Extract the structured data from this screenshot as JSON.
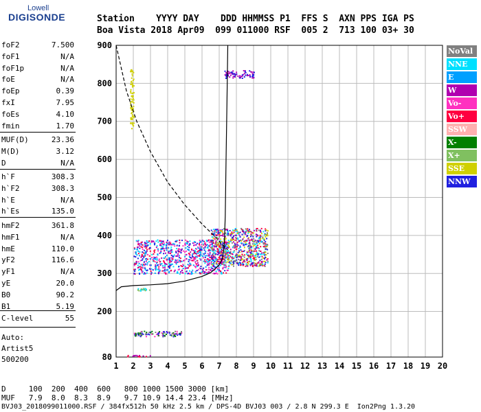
{
  "logo": {
    "line1": "Lowell",
    "line2": "DIGISONDE"
  },
  "header": {
    "line1": "Station    YYYY DAY    DDD HHMMSS P1  FFS S  AXN PPS IGA PS",
    "line2": "Boa Vista 2018 Apr09  099 011000 RSF  005 2  713 100 03+ 30"
  },
  "params_group1": [
    {
      "name": "foF2",
      "value": "7.500"
    },
    {
      "name": "foF1",
      "value": "N/A"
    },
    {
      "name": "foF1p",
      "value": "N/A"
    },
    {
      "name": "foE",
      "value": "N/A"
    },
    {
      "name": "foEp",
      "value": "0.39"
    },
    {
      "name": "fxI",
      "value": "7.95"
    },
    {
      "name": "foEs",
      "value": "4.10"
    },
    {
      "name": "fmin",
      "value": "1.70"
    }
  ],
  "params_group2": [
    {
      "name": "MUF(D)",
      "value": "23.36"
    },
    {
      "name": "M(D)",
      "value": "3.12"
    },
    {
      "name": "D",
      "value": "N/A"
    }
  ],
  "params_group3": [
    {
      "name": "h`F",
      "value": "308.3"
    },
    {
      "name": "h`F2",
      "value": "308.3"
    },
    {
      "name": "h`E",
      "value": "N/A"
    },
    {
      "name": "h`Es",
      "value": "135.0"
    }
  ],
  "params_group4": [
    {
      "name": "hmF2",
      "value": "361.8"
    },
    {
      "name": "hmF1",
      "value": "N/A"
    },
    {
      "name": "hmE",
      "value": "110.0"
    },
    {
      "name": "yF2",
      "value": "116.6"
    },
    {
      "name": "yF1",
      "value": "N/A"
    },
    {
      "name": "yE",
      "value": "20.0"
    },
    {
      "name": "B0",
      "value": "90.2"
    },
    {
      "name": "B1",
      "value": "5.19"
    }
  ],
  "params_group5": [
    {
      "name": "C-level",
      "value": "55"
    }
  ],
  "auto": {
    "line1": "Auto:",
    "line2": "Artist5",
    "line3": "500200"
  },
  "legend": [
    {
      "label": "NoVal",
      "color": "#808080"
    },
    {
      "label": "NNE",
      "color": "#00e0ff"
    },
    {
      "label": "E",
      "color": "#00a0ff"
    },
    {
      "label": "W",
      "color": "#b000b0"
    },
    {
      "label": "Vo-",
      "color": "#ff30c0"
    },
    {
      "label": "Vo+",
      "color": "#ff0040"
    },
    {
      "label": "SSW",
      "color": "#ffb0b0"
    },
    {
      "label": "X-",
      "color": "#008000"
    },
    {
      "label": "X+",
      "color": "#80c060"
    },
    {
      "label": "SSE",
      "color": "#d0d000"
    },
    {
      "label": "NNW",
      "color": "#2020e0"
    }
  ],
  "footer": {
    "line1": "D     100  200  400  600   800 1000 1500 3000 [km]",
    "line2": "MUF   7.9  8.0  8.3  8.9   9.7 10.9 14.4 23.4 [MHz]",
    "line3": "BVJ03_2018099011000.RSF / 384fx512h 50 kHz 2.5 km / DPS-4D BVJ03 003 / 2.8 N 299.3 E  Ion2Png 1.3.20"
  },
  "chart_data": {
    "type": "scatter",
    "xlim": [
      1,
      20
    ],
    "ylim": [
      80,
      900
    ],
    "x_ticks": [
      1,
      2,
      3,
      4,
      5,
      6,
      7,
      8,
      9,
      10,
      11,
      12,
      13,
      14,
      15,
      16,
      17,
      18,
      19,
      20
    ],
    "y_ticks": [
      80,
      200,
      300,
      400,
      500,
      600,
      700,
      800,
      900
    ],
    "grid": true,
    "legend_placement": "right",
    "traces": {
      "profile_solid": [
        [
          1.0,
          255
        ],
        [
          1.3,
          265
        ],
        [
          2,
          268
        ],
        [
          3,
          270
        ],
        [
          4,
          273
        ],
        [
          5,
          280
        ],
        [
          6,
          292
        ],
        [
          6.5,
          302
        ],
        [
          7,
          322
        ],
        [
          7.2,
          340
        ],
        [
          7.3,
          380
        ],
        [
          7.35,
          450
        ],
        [
          7.4,
          600
        ],
        [
          7.45,
          750
        ],
        [
          7.5,
          900
        ]
      ],
      "mode_dashed": [
        [
          1.0,
          900
        ],
        [
          1.2,
          860
        ],
        [
          1.6,
          780
        ],
        [
          2.2,
          700
        ],
        [
          3,
          620
        ],
        [
          4,
          540
        ],
        [
          5,
          480
        ],
        [
          6,
          430
        ],
        [
          6.8,
          395
        ],
        [
          7.2,
          375
        ],
        [
          7.5,
          362
        ]
      ]
    },
    "echo_regions": [
      {
        "x": [
          2.0,
          7.5
        ],
        "y": [
          300,
          390
        ],
        "colors": [
          "#b000b0",
          "#2020e0",
          "#ff0040",
          "#ff30c0",
          "#00e0ff",
          "#00a0ff"
        ]
      },
      {
        "x": [
          6.5,
          9.8
        ],
        "y": [
          320,
          420
        ],
        "colors": [
          "#00e0ff",
          "#ff0040",
          "#b000b0",
          "#2020e0",
          "#d0d000",
          "#808080"
        ]
      },
      {
        "x": [
          2.0,
          4.8
        ],
        "y": [
          135,
          150
        ],
        "colors": [
          "#008000",
          "#ff30c0",
          "#808080",
          "#2020e0"
        ]
      },
      {
        "x": [
          7.3,
          9.0
        ],
        "y": [
          815,
          835
        ],
        "colors": [
          "#b000b0",
          "#2020e0"
        ]
      },
      {
        "x": [
          1.8,
          2.0
        ],
        "y": [
          680,
          840
        ],
        "colors": [
          "#d0d000"
        ]
      },
      {
        "x": [
          1.5,
          3.0
        ],
        "y": [
          82,
          86
        ],
        "colors": [
          "#ff0040",
          "#b000b0"
        ]
      },
      {
        "x": [
          2.0,
          3.0
        ],
        "y": [
          255,
          262
        ],
        "colors": [
          "#00e0ff",
          "#80c060"
        ]
      }
    ]
  }
}
